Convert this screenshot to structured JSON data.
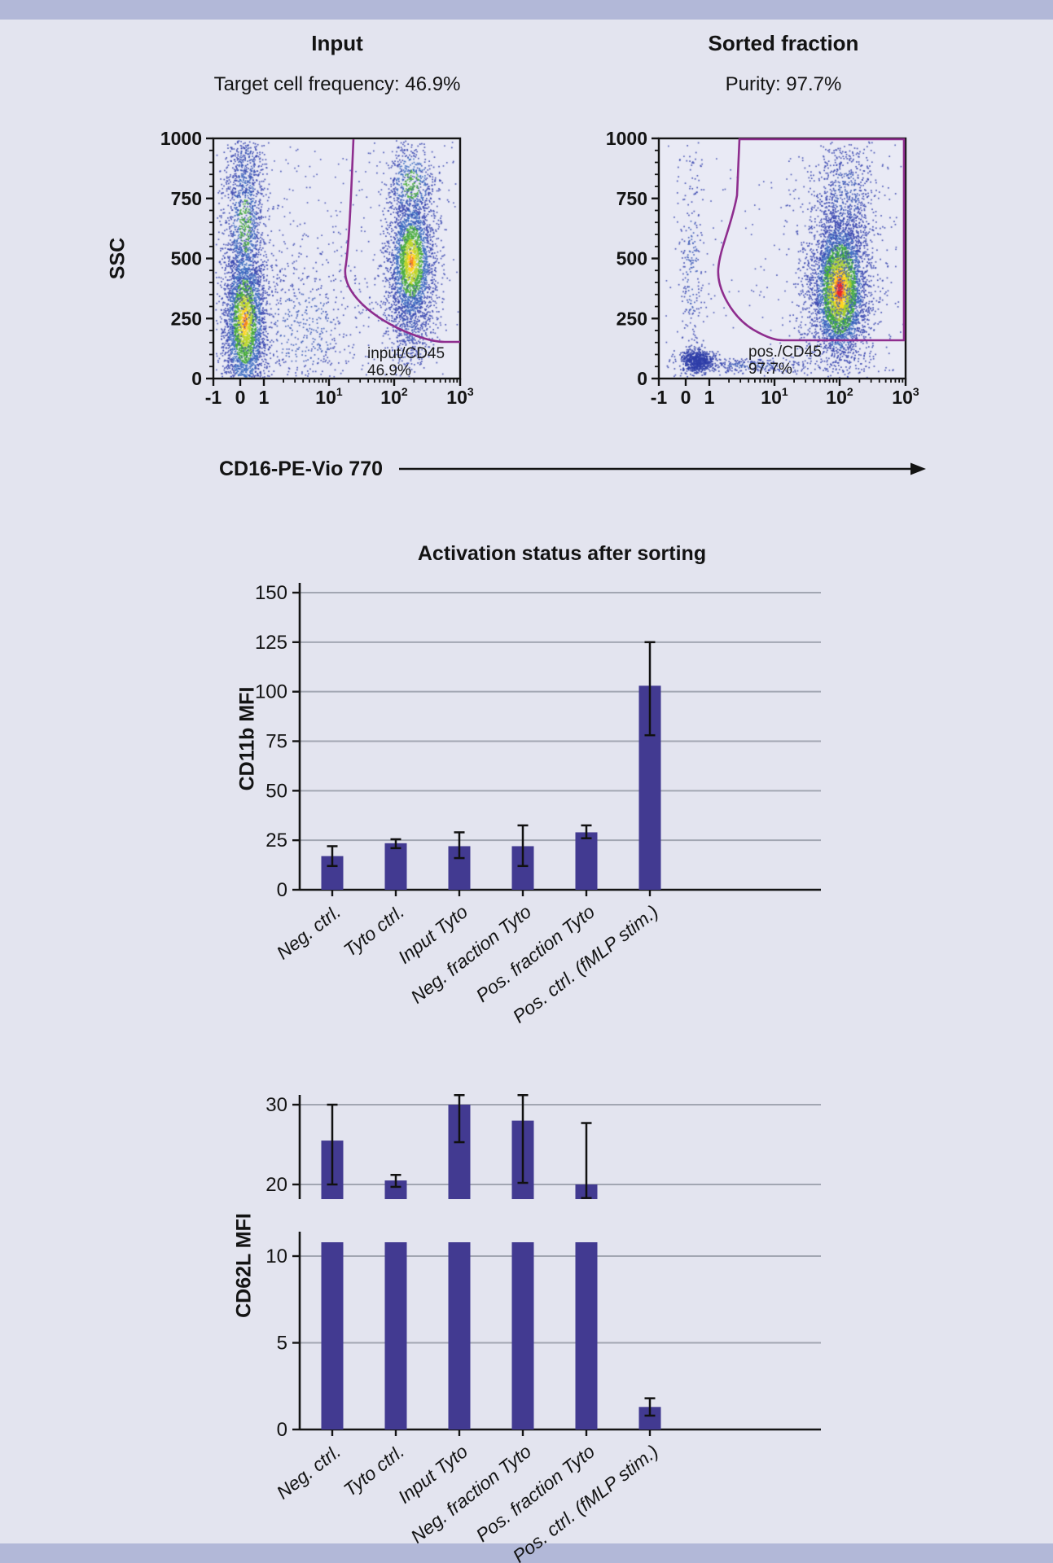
{
  "page": {
    "bg": "#e3e4ef",
    "band_color": "#b2b8d8"
  },
  "flow": {
    "left": {
      "title": "Input",
      "subtitle": "Target cell frequency: 46.9%",
      "gate_label": "input/CD45",
      "gate_value": "46.9%"
    },
    "right": {
      "title": "Sorted fraction",
      "subtitle": "Purity: 97.7%",
      "gate_label": "pos./CD45",
      "gate_value": "97.7%"
    },
    "y_label": "SSC",
    "x_label": "CD16-PE-Vio 770",
    "y_ticks": [
      "1000",
      "750",
      "500",
      "250",
      "0"
    ],
    "x_ticks": [
      {
        "t": "-1"
      },
      {
        "t": "0"
      },
      {
        "t": "1"
      },
      {
        "t": "10",
        "sup": "1"
      },
      {
        "t": "10",
        "sup": "2"
      },
      {
        "t": "10",
        "sup": "3"
      }
    ]
  },
  "chart_data": [
    {
      "type": "scatter",
      "title": "Input",
      "subtitle": "Target cell frequency: 46.9%",
      "xlabel": "CD16-PE-Vio 770",
      "ylabel": "SSC",
      "ylim": [
        0,
        1000
      ],
      "x_tick_labels": [
        "-1",
        "0",
        "1",
        "10^1",
        "10^2",
        "10^3"
      ],
      "y_tick_labels": [
        0,
        250,
        500,
        750,
        1000
      ],
      "gate": {
        "label": "input/CD45",
        "value": "46.9%"
      },
      "populations": [
        {
          "x": 0.125,
          "y": 240,
          "sx": 0.045,
          "sy": 175,
          "n": 3000,
          "heat": "yellow"
        },
        {
          "x": 0.125,
          "y": 640,
          "sx": 0.042,
          "sy": 190,
          "n": 900,
          "heat": "green"
        },
        {
          "x": 0.13,
          "y": 880,
          "sx": 0.045,
          "sy": 110,
          "n": 350,
          "heat": "blue"
        },
        {
          "x": 0.36,
          "y": 210,
          "sx": 0.16,
          "sy": 190,
          "n": 650,
          "heat": "blue"
        },
        {
          "x": 0.8,
          "y": 490,
          "sx": 0.047,
          "sy": 150,
          "n": 2600,
          "heat": "yellow"
        },
        {
          "x": 0.8,
          "y": 810,
          "sx": 0.055,
          "sy": 100,
          "n": 500,
          "heat": "green"
        },
        {
          "x": 0.79,
          "y": 230,
          "sx": 0.05,
          "sy": 90,
          "n": 320,
          "heat": "blue"
        }
      ],
      "noise": 260
    },
    {
      "type": "scatter",
      "title": "Sorted fraction",
      "subtitle": "Purity: 97.7%",
      "xlabel": "CD16-PE-Vio 770",
      "ylabel": "SSC",
      "ylim": [
        0,
        1000
      ],
      "x_tick_labels": [
        "-1",
        "0",
        "1",
        "10^1",
        "10^2",
        "10^3"
      ],
      "y_tick_labels": [
        0,
        250,
        500,
        750,
        1000
      ],
      "gate": {
        "label": "pos./CD45",
        "value": "97.7%"
      },
      "populations": [
        {
          "x": 0.73,
          "y": 375,
          "sx": 0.05,
          "sy": 140,
          "n": 3800,
          "heat": "red"
        },
        {
          "x": 0.73,
          "y": 400,
          "sx": 0.095,
          "sy": 235,
          "n": 1100,
          "heat": "blue"
        },
        {
          "x": 0.755,
          "y": 760,
          "sx": 0.07,
          "sy": 145,
          "n": 600,
          "heat": "blue"
        },
        {
          "x": 0.13,
          "y": 480,
          "sx": 0.03,
          "sy": 270,
          "n": 260,
          "heat": "blue"
        },
        {
          "x": 0.155,
          "y": 75,
          "sx": 0.035,
          "sy": 24,
          "n": 650,
          "heat": "darkblue"
        },
        {
          "x": 0.37,
          "y": 58,
          "sx": 0.13,
          "sy": 16,
          "n": 260,
          "heat": "blue"
        }
      ],
      "noise": 140
    },
    {
      "type": "bar",
      "title": "Activation status after sorting",
      "ylabel": "CD11b MFI",
      "ylim": [
        0,
        150
      ],
      "yticks": [
        0,
        25,
        50,
        75,
        100,
        125,
        150
      ],
      "grid": true,
      "categories": [
        "Neg. ctrl.",
        "Tyto ctrl.",
        "Input Tyto",
        "Neg. fraction Tyto",
        "Pos. fraction Tyto",
        "Pos. ctrl. (fMLP stim.)"
      ],
      "values": [
        17,
        23.5,
        22,
        22,
        29,
        103
      ],
      "err_low": [
        12,
        21,
        16,
        12,
        26,
        78
      ],
      "err_high": [
        22,
        25.5,
        29,
        32.5,
        32.5,
        125
      ]
    },
    {
      "type": "bar",
      "title": "",
      "ylabel": "CD62L MFI",
      "ylim": [
        0,
        31.5
      ],
      "axis_break": [
        11,
        18.2
      ],
      "yticks_lower": [
        0,
        5,
        10
      ],
      "yticks_upper": [
        20,
        30
      ],
      "grid": true,
      "categories": [
        "Neg. ctrl.",
        "Tyto ctrl.",
        "Input Tyto",
        "Neg. fraction Tyto",
        "Pos. fraction Tyto",
        "Pos. ctrl. (fMLP stim.)"
      ],
      "values": [
        25.5,
        20.5,
        30,
        28,
        20,
        1.3
      ],
      "err_low": [
        20,
        19.7,
        25.3,
        20.2,
        18.3,
        0.8
      ],
      "err_high": [
        30,
        21.2,
        31.2,
        31.2,
        27.7,
        1.8
      ]
    }
  ],
  "colors": {
    "bar": "#423a91",
    "grid": "#a2a6b2",
    "gate": "#8e2d8e",
    "axis": "#141414",
    "plot_bg": "#e9eaf5"
  }
}
